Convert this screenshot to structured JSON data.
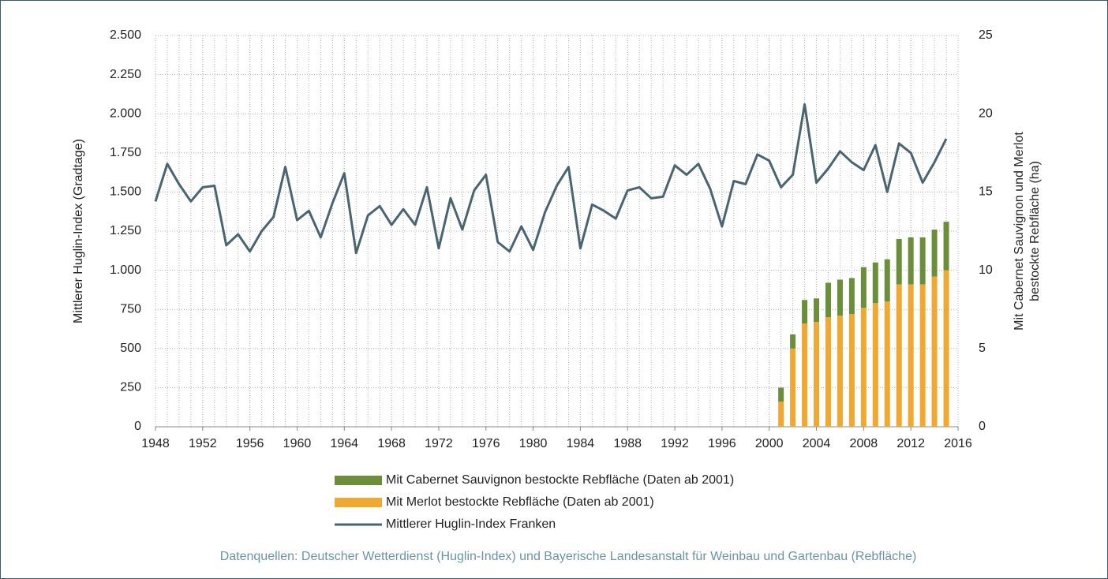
{
  "chart_data": {
    "type": "combo",
    "ylabel": "Mittlerer Huglin-Index (Gradtage)",
    "y2label": [
      "Mit Cabernet Sauvignon und Merlot",
      "bestockte Rebfläche (ha)"
    ],
    "source": "Datenquellen: Deutscher Wetterdienst (Huglin-Index) und Bayerische Landesanstalt für Weinbau und Gartenbau (Rebfläche)",
    "xlim": [
      1948,
      2016
    ],
    "xticks": [
      1948,
      1952,
      1956,
      1960,
      1964,
      1968,
      1972,
      1976,
      1980,
      1984,
      1988,
      1992,
      1996,
      2000,
      2004,
      2008,
      2012,
      2016
    ],
    "ylim": [
      0,
      2500
    ],
    "yticks": [
      0,
      250,
      500,
      750,
      {
        "value": 1000,
        "label": "1.000"
      },
      {
        "value": 1250,
        "label": "1.250"
      },
      {
        "value": 1500,
        "label": "1.500"
      },
      {
        "value": 1750,
        "label": "1.750"
      },
      {
        "value": 2000,
        "label": "2.000"
      },
      {
        "value": 2250,
        "label": "2.250"
      },
      {
        "value": 2500,
        "label": "2.500"
      }
    ],
    "y2lim": [
      0,
      25
    ],
    "y2ticks": [
      0,
      5,
      10,
      15,
      20,
      25
    ],
    "grid": true,
    "legend": "bottom",
    "series": [
      {
        "name": "Mit Cabernet Sauvignon bestockte Rebfläche (Daten ab 2001)",
        "type": "bar",
        "stack": 1,
        "axis": "y2",
        "color": "#6b8e3a",
        "x": [
          2001,
          2002,
          2003,
          2004,
          2005,
          2006,
          2007,
          2008,
          2009,
          2010,
          2011,
          2012,
          2013,
          2014,
          2015
        ],
        "values": [
          0.9,
          0.9,
          1.5,
          1.5,
          2.2,
          2.3,
          2.3,
          2.6,
          2.6,
          2.7,
          2.9,
          3.0,
          3.0,
          3.0,
          3.1
        ]
      },
      {
        "name": "Mit Merlot bestockte Rebfläche (Daten ab 2001)",
        "type": "bar",
        "stack": 0,
        "axis": "y2",
        "color": "#f0a830",
        "x": [
          2001,
          2002,
          2003,
          2004,
          2005,
          2006,
          2007,
          2008,
          2009,
          2010,
          2011,
          2012,
          2013,
          2014,
          2015
        ],
        "values": [
          1.6,
          5.0,
          6.6,
          6.7,
          7.0,
          7.1,
          7.2,
          7.6,
          7.9,
          8.0,
          9.1,
          9.1,
          9.1,
          9.6,
          10.0
        ]
      },
      {
        "name": "Mittlerer Huglin-Index Franken",
        "type": "line",
        "color": "#4a6472",
        "x": [
          1948,
          1949,
          1950,
          1951,
          1952,
          1953,
          1954,
          1955,
          1956,
          1957,
          1958,
          1959,
          1960,
          1961,
          1962,
          1963,
          1964,
          1965,
          1966,
          1967,
          1968,
          1969,
          1970,
          1971,
          1972,
          1973,
          1974,
          1975,
          1976,
          1977,
          1978,
          1979,
          1980,
          1981,
          1982,
          1983,
          1984,
          1985,
          1986,
          1987,
          1988,
          1989,
          1990,
          1991,
          1992,
          1993,
          1994,
          1995,
          1996,
          1997,
          1998,
          1999,
          2000,
          2001,
          2002,
          2003,
          2004,
          2005,
          2006,
          2007,
          2008,
          2009,
          2010,
          2011,
          2012,
          2013,
          2014,
          2015
        ],
        "values": [
          1440,
          1680,
          1550,
          1440,
          1530,
          1540,
          1160,
          1230,
          1120,
          1250,
          1340,
          1660,
          1320,
          1380,
          1210,
          1430,
          1620,
          1110,
          1350,
          1410,
          1290,
          1390,
          1290,
          1530,
          1140,
          1460,
          1260,
          1510,
          1610,
          1180,
          1120,
          1280,
          1130,
          1370,
          1540,
          1660,
          1140,
          1420,
          1380,
          1330,
          1510,
          1530,
          1460,
          1470,
          1670,
          1610,
          1680,
          1520,
          1280,
          1570,
          1550,
          1740,
          1700,
          1530,
          1610,
          2060,
          1560,
          1650,
          1760,
          1690,
          1640,
          1800,
          1500,
          1810,
          1750,
          1560,
          1690,
          1840
        ]
      }
    ]
  }
}
